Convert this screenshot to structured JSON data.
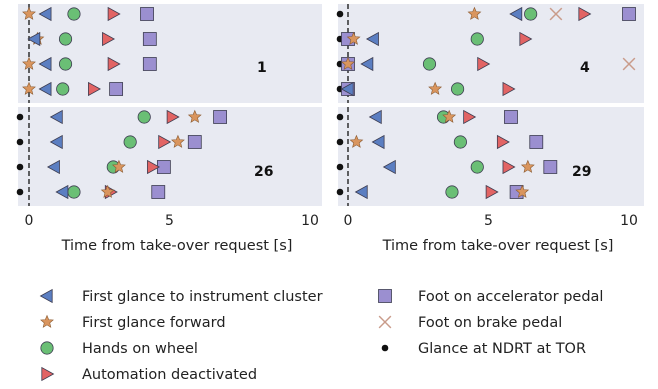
{
  "chart_data": {
    "type": "scatter",
    "xlabel": "Time from take-over request [s]",
    "xlim": [
      -0.5,
      10
    ],
    "xticks": [
      0,
      5,
      10
    ],
    "grid": false,
    "legend_position": "bottom",
    "colors": {
      "panel_bg": "#e8eaf2",
      "instrument": "#5b7ec1",
      "forward": "#d9955e",
      "hands": "#6abf75",
      "automation": "#e26464",
      "accelerator": "#9b8fd0",
      "brake": "#c99b8a",
      "ndrt": "#111111"
    },
    "legend": [
      {
        "key": "instrument",
        "label": "First glance to instrument cluster",
        "marker": "triangle-left"
      },
      {
        "key": "forward",
        "label": "First glance forward",
        "marker": "star"
      },
      {
        "key": "hands",
        "label": "Hands on wheel",
        "marker": "circle"
      },
      {
        "key": "automation",
        "label": "Automation deactivated",
        "marker": "triangle-right"
      },
      {
        "key": "accelerator",
        "label": "Foot on accelerator pedal",
        "marker": "square"
      },
      {
        "key": "brake",
        "label": "Foot on brake pedal",
        "marker": "x"
      },
      {
        "key": "ndrt",
        "label": "Glance at NDRT at TOR",
        "marker": "dot"
      }
    ],
    "panels": [
      {
        "label": "1",
        "rows": [
          {
            "ndrt": false,
            "instrument": 0.6,
            "forward": 0.0,
            "hands": 1.6,
            "automation": 3.0,
            "accelerator": 4.2
          },
          {
            "ndrt": false,
            "instrument": 0.2,
            "forward": 0.3,
            "hands": 1.3,
            "automation": 2.8,
            "accelerator": 4.3
          },
          {
            "ndrt": false,
            "instrument": 0.6,
            "forward": 0.0,
            "hands": 1.3,
            "automation": 3.0,
            "accelerator": 4.3
          },
          {
            "ndrt": false,
            "instrument": 0.6,
            "forward": 0.0,
            "hands": 1.2,
            "automation": 2.3,
            "accelerator": 3.1
          }
        ]
      },
      {
        "label": "4",
        "rows": [
          {
            "ndrt": true,
            "instrument": 6.0,
            "forward": 4.5,
            "hands": 6.5,
            "automation": 8.4,
            "accelerator": 10.0,
            "brake": 7.4
          },
          {
            "ndrt": true,
            "instrument": 0.9,
            "forward": 0.2,
            "hands": 4.6,
            "automation": 6.3,
            "accelerator": 0.0
          },
          {
            "ndrt": true,
            "instrument": 0.7,
            "forward": 0.0,
            "hands": 2.9,
            "automation": 4.8,
            "accelerator": 0.0,
            "brake": 10.0
          },
          {
            "ndrt": true,
            "instrument": 0.0,
            "forward": 3.1,
            "hands": 3.9,
            "automation": 5.7,
            "accelerator": 0.0
          }
        ]
      },
      {
        "label": "26",
        "rows": [
          {
            "ndrt": true,
            "instrument": 1.0,
            "forward": 5.9,
            "hands": 4.1,
            "automation": 5.1,
            "accelerator": 6.8
          },
          {
            "ndrt": true,
            "instrument": 1.0,
            "forward": 5.3,
            "hands": 3.6,
            "automation": 4.8,
            "accelerator": 5.9
          },
          {
            "ndrt": true,
            "instrument": 0.9,
            "forward": 3.2,
            "hands": 3.0,
            "automation": 4.4,
            "accelerator": 4.8
          },
          {
            "ndrt": true,
            "instrument": 1.2,
            "forward": 2.8,
            "hands": 1.6,
            "automation": 2.9,
            "accelerator": 4.6
          }
        ]
      },
      {
        "label": "29",
        "rows": [
          {
            "ndrt": true,
            "instrument": 1.0,
            "forward": 3.6,
            "hands": 3.4,
            "automation": 4.3,
            "accelerator": 5.8
          },
          {
            "ndrt": true,
            "instrument": 1.1,
            "forward": 0.3,
            "hands": 4.0,
            "automation": 5.5,
            "accelerator": 6.7
          },
          {
            "ndrt": true,
            "instrument": 1.5,
            "forward": 6.4,
            "hands": 4.6,
            "automation": 5.7,
            "accelerator": 7.2
          },
          {
            "ndrt": true,
            "instrument": 0.5,
            "forward": 6.2,
            "hands": 3.7,
            "automation": 5.1,
            "accelerator": 6.0
          }
        ]
      }
    ]
  }
}
